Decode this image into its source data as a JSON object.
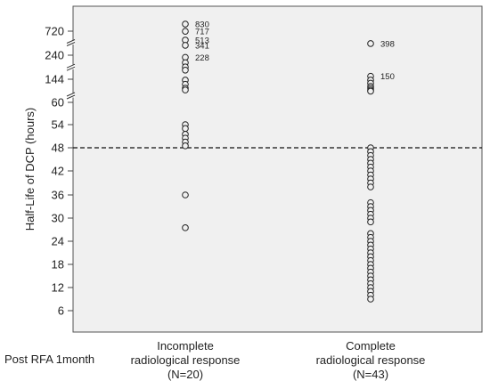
{
  "chart_data": {
    "type": "scatter",
    "ylabel": "Half-Life of DCP (hours)",
    "xlabel": "Post RFA 1month",
    "yticks": [
      6,
      12,
      18,
      24,
      30,
      36,
      42,
      48,
      54,
      60,
      144,
      240,
      720
    ],
    "y_axis_note": "broken axis between 60 and 144, 144 and 240, 240 and 720",
    "threshold_line": 48,
    "grid": false,
    "legend": "none",
    "categories": [
      {
        "lines": [
          "Incomplete",
          "radiological response",
          "(N=20)"
        ]
      },
      {
        "lines": [
          "Complete",
          "radiological response",
          "(N=43)"
        ]
      }
    ],
    "annotations": [
      {
        "group": 0,
        "text": "830"
      },
      {
        "group": 0,
        "text": "717"
      },
      {
        "group": 0,
        "text": "513"
      },
      {
        "group": 0,
        "text": "341"
      },
      {
        "group": 0,
        "text": "228"
      },
      {
        "group": 1,
        "text": "398"
      },
      {
        "group": 1,
        "text": "150"
      }
    ],
    "series": [
      {
        "values": [
          830,
          717,
          513,
          341,
          228,
          200,
          180,
          165,
          140,
          120,
          95,
          80,
          54,
          53,
          51.5,
          50.5,
          49.5,
          48.5,
          36,
          27.5
        ]
      },
      {
        "values": [
          398,
          150,
          140,
          125,
          110,
          95,
          80,
          70,
          48,
          47,
          46,
          45,
          44,
          43,
          42,
          41,
          40,
          39,
          38,
          34,
          33,
          32,
          31,
          30,
          29,
          26,
          25,
          24,
          23,
          22,
          21,
          20,
          19,
          18,
          17,
          16,
          15,
          14,
          13,
          12,
          11,
          10,
          9
        ]
      }
    ]
  }
}
